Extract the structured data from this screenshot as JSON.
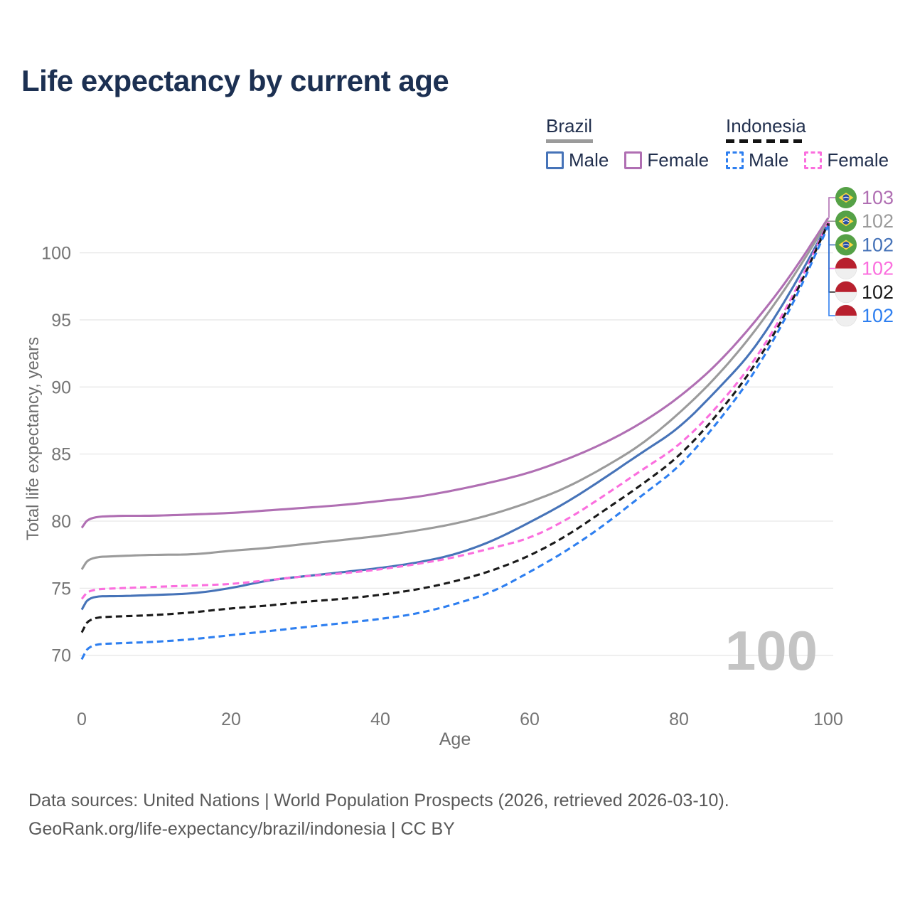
{
  "title": "Life expectancy by current age",
  "legend": {
    "groups": [
      {
        "name": "Brazil",
        "underline_style": "solid",
        "underline_color": "#9b9b9b",
        "items": [
          {
            "label": "Male",
            "color": "#4673b8",
            "dash": false
          },
          {
            "label": "Female",
            "color": "#b06fb3",
            "dash": false
          }
        ]
      },
      {
        "name": "Indonesia",
        "underline_style": "dashed",
        "underline_color": "#141414",
        "items": [
          {
            "label": "Male",
            "color": "#2e7ff0",
            "dash": true
          },
          {
            "label": "Female",
            "color": "#fb6ede",
            "dash": true
          }
        ]
      }
    ]
  },
  "chart_data": {
    "type": "line",
    "title": "Life expectancy by current age",
    "xlabel": "Age",
    "ylabel": "Total life expectancy, years",
    "x_ticks": [
      0,
      20,
      40,
      60,
      80,
      100
    ],
    "y_ticks": [
      70,
      75,
      80,
      85,
      90,
      95,
      100
    ],
    "xlim": [
      0,
      100
    ],
    "ylim": [
      69,
      103.5
    ],
    "grid": "horizontal-only",
    "legend_position": "top-right",
    "x": [
      0,
      1,
      5,
      10,
      15,
      20,
      25,
      30,
      35,
      40,
      45,
      50,
      55,
      60,
      65,
      70,
      75,
      80,
      85,
      90,
      95,
      100
    ],
    "series": [
      {
        "name": "Brazil Female",
        "country": "Brazil",
        "sex": "Female",
        "color": "#b06fb3",
        "dash": false,
        "flag": "brazil",
        "end_label": "103",
        "values": [
          79.5,
          80.3,
          80.4,
          80.4,
          80.5,
          80.6,
          80.8,
          81.0,
          81.2,
          81.5,
          81.8,
          82.3,
          82.9,
          83.6,
          84.6,
          85.8,
          87.3,
          89.2,
          91.6,
          94.7,
          98.3,
          102.6
        ]
      },
      {
        "name": "Brazil (both sexes)",
        "country": "Brazil",
        "sex": "Both",
        "color": "#9b9b9b",
        "dash": false,
        "flag": "brazil",
        "end_label": "102",
        "values": [
          76.4,
          77.3,
          77.4,
          77.5,
          77.5,
          77.8,
          78.0,
          78.3,
          78.6,
          78.9,
          79.3,
          79.8,
          80.5,
          81.4,
          82.5,
          84.0,
          85.7,
          88.0,
          90.7,
          94.0,
          97.9,
          102.4
        ]
      },
      {
        "name": "Brazil Male",
        "country": "Brazil",
        "sex": "Male",
        "color": "#4673b8",
        "dash": false,
        "flag": "brazil",
        "end_label": "102",
        "values": [
          73.4,
          74.4,
          74.4,
          74.5,
          74.6,
          75.0,
          75.6,
          75.9,
          76.2,
          76.5,
          76.9,
          77.5,
          78.5,
          79.9,
          81.4,
          83.2,
          85.1,
          86.9,
          89.7,
          92.7,
          97.1,
          102.2
        ]
      },
      {
        "name": "Indonesia Female",
        "country": "Indonesia",
        "sex": "Female",
        "color": "#fb6ede",
        "dash": true,
        "flag": "indonesia",
        "end_label": "102",
        "values": [
          74.2,
          74.9,
          75.0,
          75.1,
          75.2,
          75.3,
          75.6,
          75.9,
          76.1,
          76.4,
          76.8,
          77.3,
          78.0,
          78.7,
          80.1,
          81.9,
          83.8,
          85.6,
          88.4,
          91.8,
          96.4,
          102.3
        ]
      },
      {
        "name": "Indonesia (both sexes)",
        "country": "Indonesia",
        "sex": "Both",
        "color": "#1a1a1a",
        "dash": true,
        "flag": "indonesia",
        "end_label": "102",
        "values": [
          71.7,
          72.8,
          72.9,
          73.0,
          73.2,
          73.5,
          73.7,
          74.0,
          74.2,
          74.5,
          74.9,
          75.5,
          76.3,
          77.4,
          78.9,
          80.8,
          82.7,
          84.8,
          87.8,
          91.4,
          96.1,
          102.2
        ]
      },
      {
        "name": "Indonesia Male",
        "country": "Indonesia",
        "sex": "Male",
        "color": "#2e7ff0",
        "dash": true,
        "flag": "indonesia",
        "end_label": "102",
        "values": [
          69.7,
          70.8,
          70.9,
          71.0,
          71.2,
          71.5,
          71.8,
          72.1,
          72.4,
          72.7,
          73.1,
          73.8,
          74.7,
          76.2,
          77.8,
          79.7,
          81.9,
          84.0,
          87.2,
          90.9,
          95.8,
          102.0
        ]
      }
    ]
  },
  "annotations": {
    "watermark": "100",
    "watermark_color": "#c4c4c4"
  },
  "colors": {
    "title_text": "#1c3052",
    "axis_text": "#6e6e6e",
    "tick_text": "#757575",
    "gridline": "#e7e7e7",
    "flag_brazil_green": "#55a146",
    "flag_brazil_yellow": "#fcd742",
    "flag_brazil_blue": "#2a52a3",
    "flag_indonesia_red": "#b8202e",
    "flag_indonesia_white": "#efefef"
  },
  "footer": {
    "line1": "Data sources: United Nations | World Population Prospects (2026, retrieved 2026-03-10).",
    "line2": "GeoRank.org/life-expectancy/brazil/indonesia | CC BY"
  }
}
